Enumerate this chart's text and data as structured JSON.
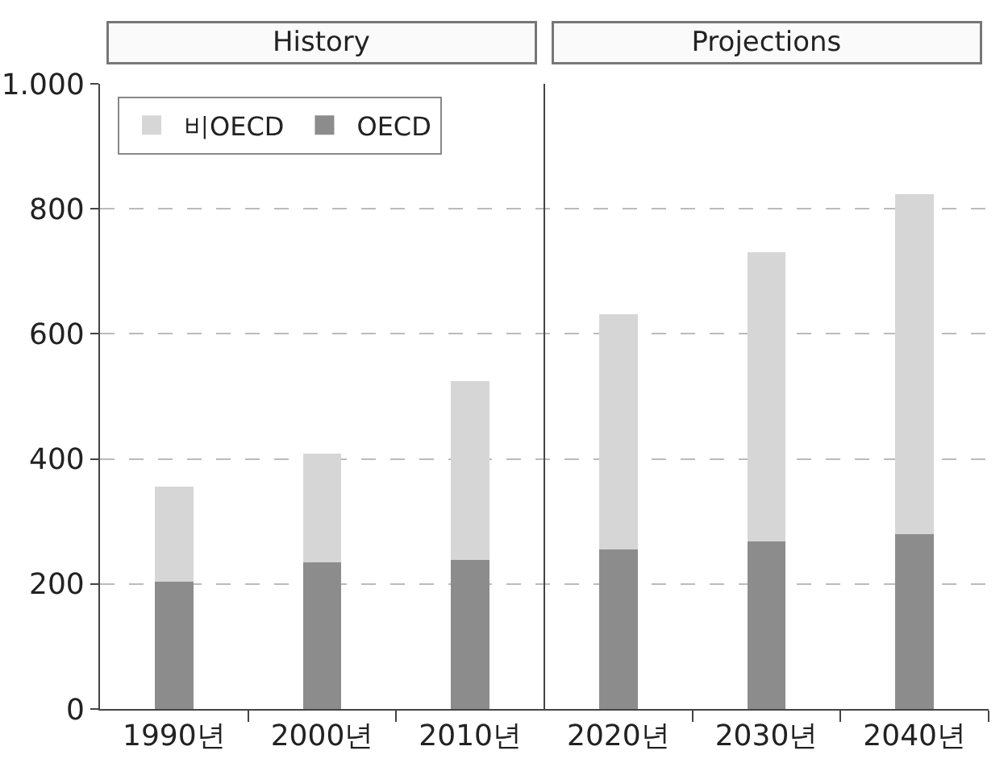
{
  "chart_data": {
    "type": "bar",
    "stacked": true,
    "x": [
      1990,
      2000,
      2010,
      2020,
      2030,
      2040
    ],
    "series": [
      {
        "name": "OECD",
        "color": "#8c8c8c",
        "values": [
          203,
          234,
          239,
          255,
          268,
          280
        ]
      },
      {
        "name": "비OECD",
        "color": "#d6d6d6",
        "values": [
          153,
          174,
          285,
          377,
          463,
          543
        ]
      }
    ],
    "xlim": [
      1985,
      2045
    ],
    "xticks": [
      {
        "value": 1990,
        "label": "1990년"
      },
      {
        "value": 1995,
        "label": null
      },
      {
        "value": 2000,
        "label": "2000년"
      },
      {
        "value": 2005,
        "label": null
      },
      {
        "value": 2010,
        "label": "2010년"
      },
      {
        "value": 2020,
        "label": "2020년"
      },
      {
        "value": 2025,
        "label": null
      },
      {
        "value": 2030,
        "label": "2030년"
      },
      {
        "value": 2035,
        "label": null
      },
      {
        "value": 2040,
        "label": "2040년"
      },
      {
        "value": 2045,
        "label": null
      }
    ],
    "ylim": [
      0,
      1000
    ],
    "yticks": [
      0,
      200,
      400,
      600,
      800,
      {
        "value": 1000,
        "label": "1.000"
      }
    ],
    "grid": "y",
    "legend": "top left",
    "ref_lines": [
      {
        "axis": "x",
        "value": 2015,
        "color": "#444444"
      }
    ],
    "annotations": [
      "History",
      "Projections"
    ]
  }
}
